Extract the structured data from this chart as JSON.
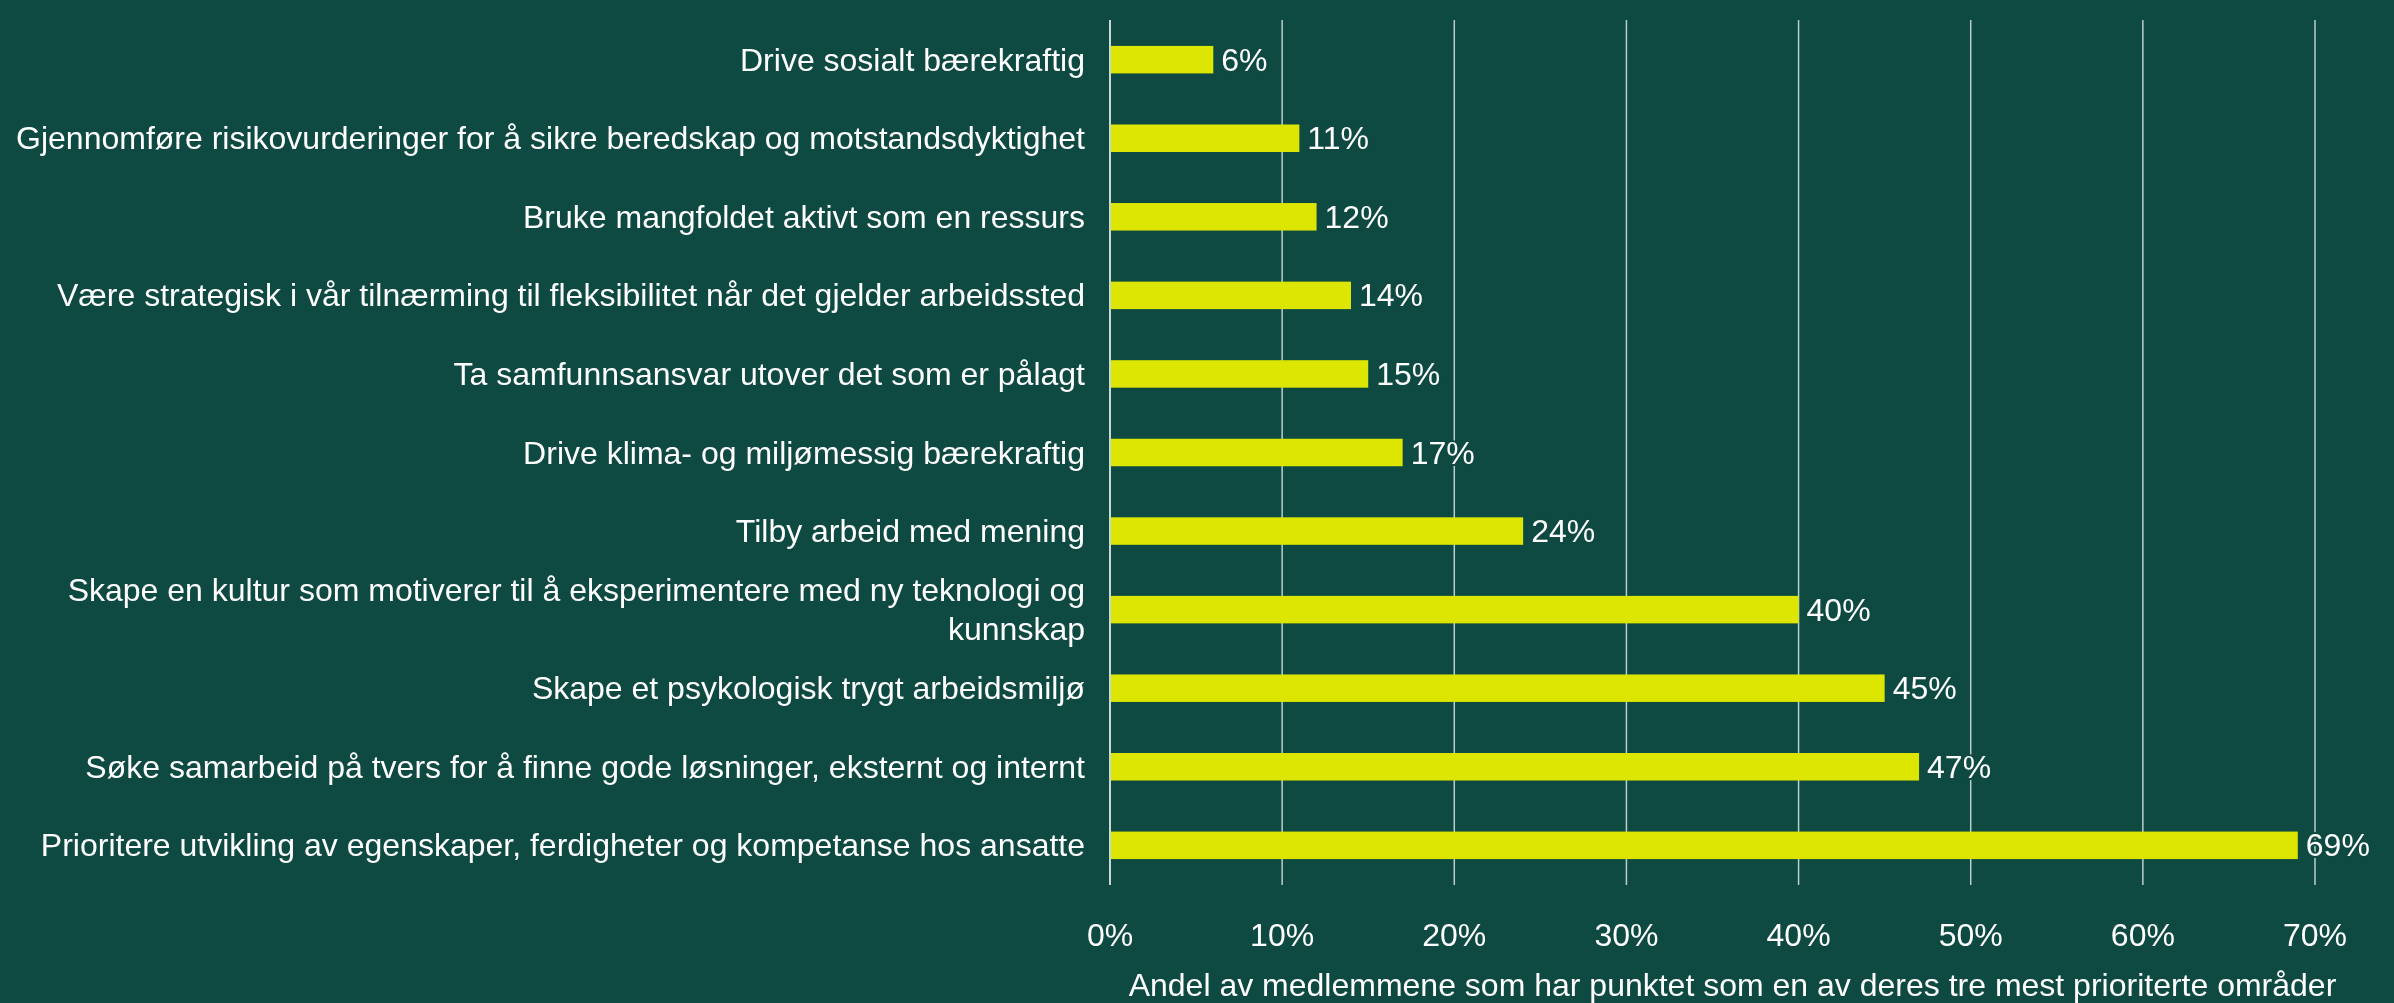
{
  "chart_data": {
    "type": "bar",
    "orientation": "horizontal",
    "xlabel": "Andel av medlemmene som har punktet som en av deres tre mest prioriterte områder",
    "categories": [
      "Drive sosialt bærekraftig",
      "Gjennomføre risikovurderinger for å sikre beredskap og motstandsdyktighet",
      "Bruke mangfoldet aktivt som en ressurs",
      "Være strategisk i vår tilnærming til fleksibilitet når det gjelder arbeidssted",
      "Ta samfunnsansvar utover det som er pålagt",
      "Drive klima- og miljømessig bærekraftig",
      "Tilby arbeid med mening",
      "Skape en kultur som motiverer til å eksperimentere med ny teknologi og kunnskap",
      "Skape et psykologisk trygt arbeidsmiljø",
      "Søke samarbeid på tvers for å finne gode løsninger, eksternt og internt",
      "Prioritere utvikling av egenskaper, ferdigheter og kompetanse hos ansatte"
    ],
    "values": [
      6,
      11,
      12,
      14,
      15,
      17,
      24,
      40,
      45,
      47,
      69
    ],
    "value_labels": [
      "6%",
      "11%",
      "12%",
      "14%",
      "15%",
      "17%",
      "24%",
      "40%",
      "45%",
      "47%",
      "69%"
    ],
    "color": "#dce600",
    "xlim": [
      0,
      70
    ],
    "xticks": [
      {
        "value": 0,
        "label": "0%"
      },
      {
        "value": 10,
        "label": "10%"
      },
      {
        "value": 20,
        "label": "20%"
      },
      {
        "value": 30,
        "label": "30%"
      },
      {
        "value": 40,
        "label": "40%"
      },
      {
        "value": 50,
        "label": "50%"
      },
      {
        "value": 60,
        "label": "60%"
      },
      {
        "value": 70,
        "label": "70%"
      }
    ],
    "grid": "x"
  }
}
